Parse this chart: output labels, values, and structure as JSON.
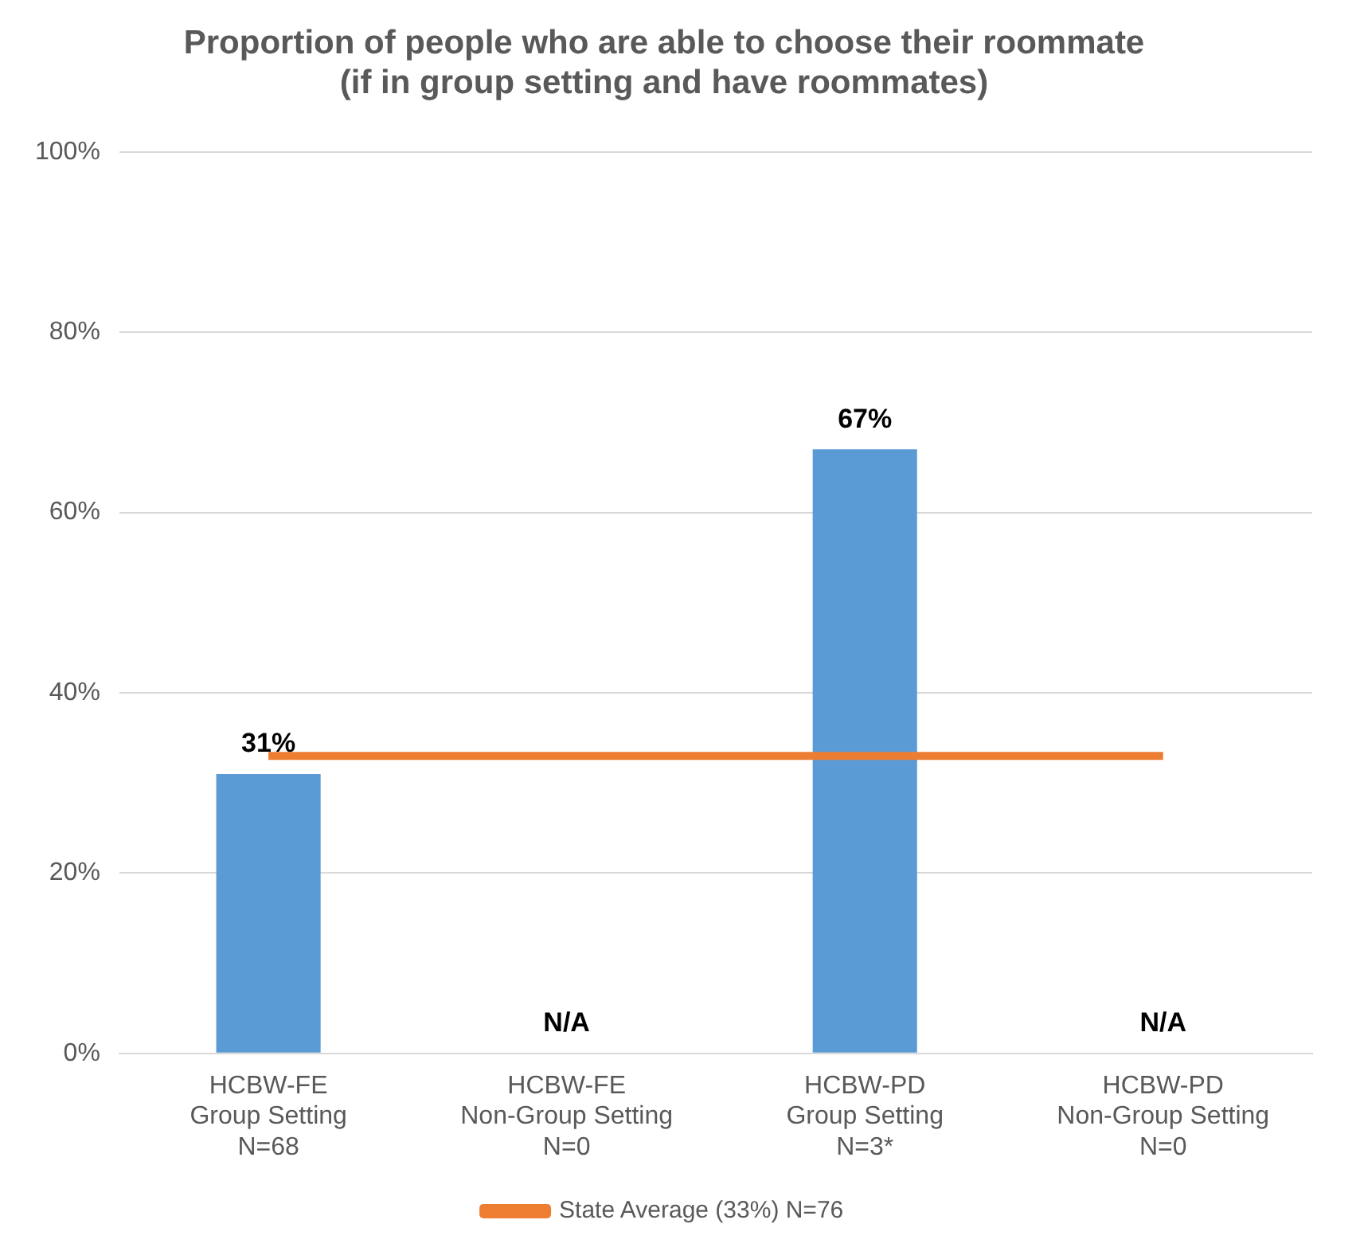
{
  "chart_data": {
    "type": "bar",
    "title": "Proportion of people who are able to choose their roommate\n(if in group setting and have roommates)",
    "categories": [
      "HCBW-FE\nGroup Setting\nN=68",
      "HCBW-FE\nNon-Group Setting\nN=0",
      "HCBW-PD\nGroup Setting\nN=3*",
      "HCBW-PD\nNon-Group Setting\nN=0"
    ],
    "series": [
      {
        "color": "#5b9bd5",
        "values": [
          31,
          null,
          67,
          null
        ],
        "value_labels": [
          "31%",
          "N/A",
          "67%",
          "N/A"
        ]
      },
      {
        "type": "line",
        "name": "State Average (33%) N=76",
        "color": "#ed7d31",
        "values": [
          33,
          33,
          33,
          33
        ]
      }
    ],
    "ylim": [
      0,
      100
    ],
    "yticks": [
      {
        "value": 0,
        "label": "0%"
      },
      {
        "value": 20,
        "label": "20%"
      },
      {
        "value": 40,
        "label": "40%"
      },
      {
        "value": 60,
        "label": "60%"
      },
      {
        "value": 80,
        "label": "80%"
      },
      {
        "value": 100,
        "label": "100%"
      }
    ],
    "grid": "y",
    "legend": "bottom",
    "marker": "none",
    "line_style": "solid"
  }
}
